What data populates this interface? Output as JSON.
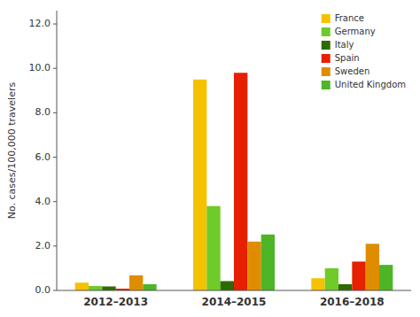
{
  "chart_data": {
    "type": "bar",
    "categories": [
      "2012–2013",
      "2014–2015",
      "2016–2018"
    ],
    "series": [
      {
        "name": "France",
        "color": "#f5c200",
        "values": [
          0.35,
          9.5,
          0.55
        ]
      },
      {
        "name": "Germany",
        "color": "#6ecb2a",
        "values": [
          0.2,
          3.8,
          1.0
        ]
      },
      {
        "name": "Italy",
        "color": "#2d6a00",
        "values": [
          0.18,
          0.42,
          0.28
        ]
      },
      {
        "name": "Spain",
        "color": "#e62000",
        "values": [
          0.08,
          9.8,
          1.3
        ]
      },
      {
        "name": "Sweden",
        "color": "#e08c00",
        "values": [
          0.68,
          2.2,
          2.1
        ]
      },
      {
        "name": "United Kingdom",
        "color": "#4db526",
        "values": [
          0.28,
          2.52,
          1.15
        ]
      }
    ],
    "ylabel": "No. cases/100,000 travelers",
    "ylim": [
      0,
      12.6
    ],
    "yticks": [
      {
        "value": 0.0,
        "label": "0.0"
      },
      {
        "value": 2.0,
        "label": "2.0"
      },
      {
        "value": 4.0,
        "label": "4.0"
      },
      {
        "value": 6.0,
        "label": "6.0"
      },
      {
        "value": 8.0,
        "label": "8.0"
      },
      {
        "value": 10.0,
        "label": "10.0"
      },
      {
        "value": 12.0,
        "label": "12.0"
      }
    ],
    "grid": false,
    "legend": "upper-right"
  }
}
